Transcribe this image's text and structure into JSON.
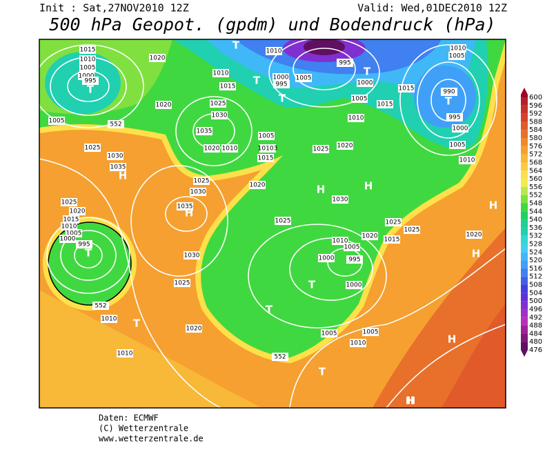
{
  "header": {
    "init": "Init : Sat,27NOV2010 12Z",
    "valid": "Valid: Wed,01DEC2010 12Z",
    "title": "500 hPa Geopot. (gpdm) und Bodendruck (hPa)"
  },
  "colorbar": {
    "levels": [
      600,
      596,
      592,
      588,
      584,
      580,
      576,
      572,
      568,
      564,
      560,
      556,
      552,
      548,
      544,
      540,
      536,
      532,
      528,
      524,
      520,
      516,
      512,
      508,
      504,
      500,
      496,
      492,
      488,
      484,
      480,
      476
    ],
    "colors": [
      "#a0002a",
      "#b4202a",
      "#c8302a",
      "#d8402a",
      "#e05a2a",
      "#e8702a",
      "#f0882a",
      "#f5a030",
      "#f8b838",
      "#fbcc40",
      "#fde04a",
      "#f0ec50",
      "#b8e850",
      "#80e040",
      "#40d840",
      "#20d060",
      "#20d090",
      "#20d0b0",
      "#30d8d0",
      "#40d0f0",
      "#40b8f8",
      "#40a0f8",
      "#4080f0",
      "#4060e8",
      "#4040e0",
      "#6030d8",
      "#8030d0",
      "#a030c8",
      "#b830b8",
      "#a02098",
      "#801878",
      "#601060"
    ]
  },
  "map": {
    "isobar_labels": [
      "1015",
      "1010",
      "1005",
      "1000",
      "995",
      "1020",
      "1020",
      "1005",
      "552",
      "1025",
      "1030",
      "1035",
      "1010",
      "995",
      "1010",
      "1005",
      "1000",
      "1015",
      "1010",
      "1015",
      "1000",
      "995",
      "1005",
      "1005",
      "1015",
      "990",
      "995",
      "1000",
      "1025",
      "1030",
      "1035",
      "1020",
      "1010",
      "1005",
      "10103",
      "1015",
      "1010",
      "1025",
      "1020",
      "1005",
      "1010",
      "1020",
      "1025",
      "1030",
      "1030",
      "1035",
      "1025",
      "1020",
      "1015",
      "1010",
      "1005",
      "1000",
      "995",
      "1025",
      "1025",
      "1025",
      "1020",
      "1015",
      "1010",
      "1005",
      "1000",
      "995",
      "1030",
      "1020",
      "1000",
      "1025",
      "552",
      "1010",
      "1020",
      "1005",
      "1005",
      "1010",
      "1010",
      "552"
    ],
    "centers": [
      "T",
      "H",
      "T",
      "T",
      "T",
      "T",
      "T",
      "H",
      "H",
      "H",
      "T",
      "H",
      "H",
      "H",
      "T",
      "T",
      "T",
      "H",
      "T",
      "H"
    ]
  },
  "credits": [
    "Daten: ECMWF",
    "(C) Wetterzentrale",
    "www.wetterzentrale.de"
  ]
}
